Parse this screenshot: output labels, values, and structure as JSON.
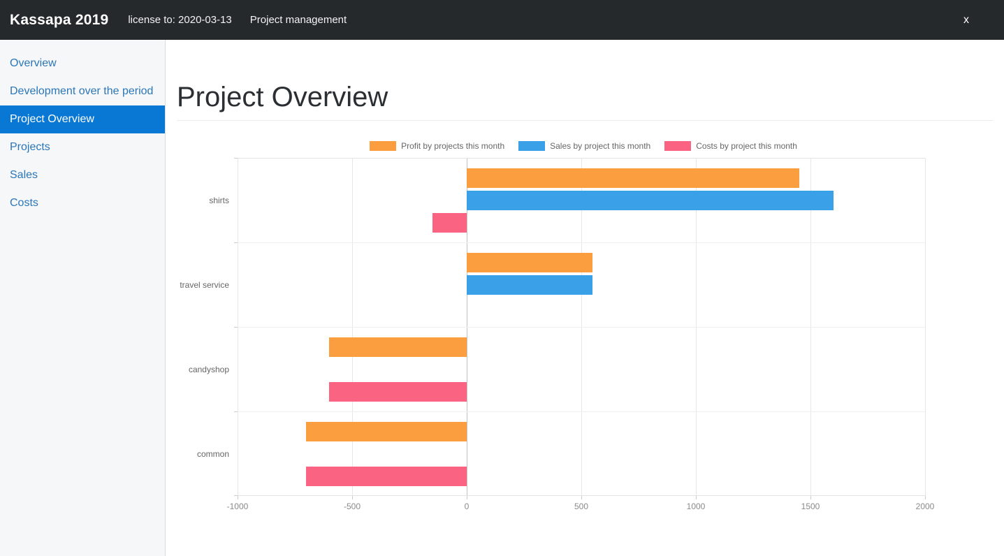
{
  "topbar": {
    "app_title": "Kassapa 2019",
    "license_text": "license to: 2020-03-13",
    "context_text": "Project management",
    "close_label": "x"
  },
  "sidebar": {
    "items": [
      {
        "label": "Overview",
        "selected": false
      },
      {
        "label": "Development over the period",
        "selected": false
      },
      {
        "label": "Project Overview",
        "selected": true
      },
      {
        "label": "Projects",
        "selected": false
      },
      {
        "label": "Sales",
        "selected": false
      },
      {
        "label": "Costs",
        "selected": false
      }
    ]
  },
  "main": {
    "page_title": "Project Overview"
  },
  "theme": {
    "topbar_bg": "#26292c",
    "sidebar_selected_bg": "#0878d4",
    "sidebar_link_color": "#2b76b9",
    "profit_color": "#fb9e3f",
    "sales_color": "#3aa0e8",
    "costs_color": "#fb6382"
  },
  "chart_data": {
    "type": "bar",
    "orientation": "horizontal",
    "title": "",
    "xlabel": "",
    "ylabel": "",
    "categories": [
      "shirts",
      "travel service",
      "candyshop",
      "common"
    ],
    "series": [
      {
        "name": "Profit by projects this month",
        "color": "#fb9e3f",
        "values": [
          1450,
          550,
          -600,
          -700
        ]
      },
      {
        "name": "Sales by project this month",
        "color": "#3aa0e8",
        "values": [
          1600,
          550,
          0,
          0
        ]
      },
      {
        "name": "Costs by project this month",
        "color": "#fb6382",
        "values": [
          -150,
          0,
          -600,
          -700
        ]
      }
    ],
    "xlim": [
      -1000,
      2000
    ],
    "xticks": [
      -1000,
      -500,
      0,
      500,
      1000,
      1500,
      2000
    ],
    "grid": true,
    "legend_position": "top"
  }
}
